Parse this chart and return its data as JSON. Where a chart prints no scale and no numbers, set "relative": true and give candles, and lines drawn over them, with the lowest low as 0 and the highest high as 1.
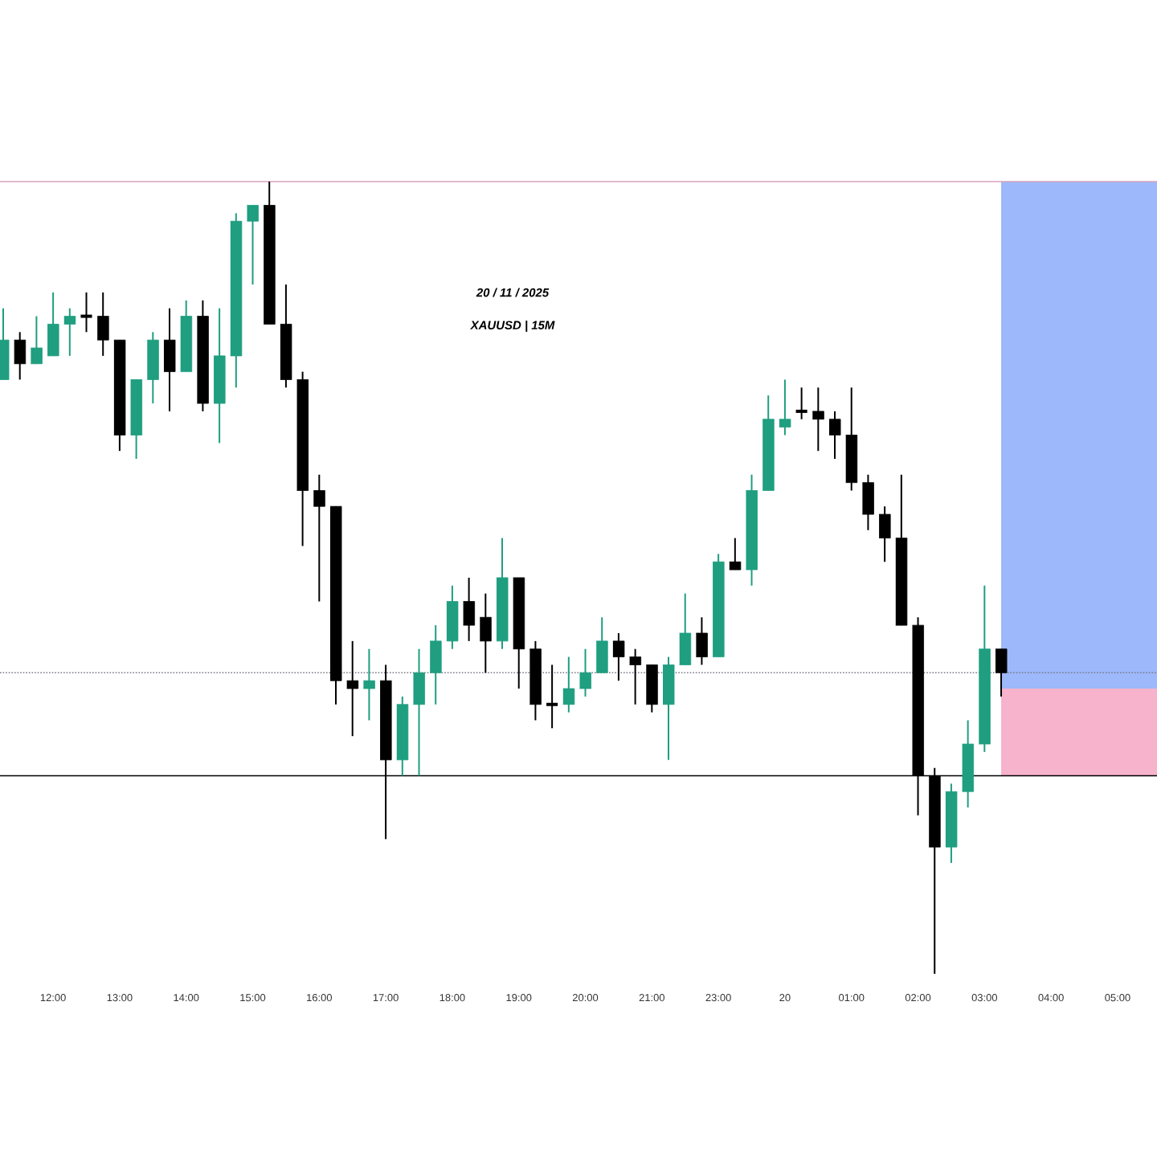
{
  "chart_data": {
    "type": "candlestick",
    "relative": true,
    "categories": [
      null,
      null,
      null,
      "12:00",
      null,
      null,
      null,
      "13:00",
      null,
      null,
      null,
      "14:00",
      null,
      null,
      null,
      "15:00",
      null,
      null,
      null,
      "16:00",
      null,
      null,
      null,
      "17:00",
      null,
      null,
      null,
      "18:00",
      null,
      null,
      null,
      "19:00",
      null,
      null,
      null,
      "20:00",
      null,
      null,
      null,
      "21:00",
      null,
      null,
      null,
      "23:00",
      null,
      null,
      null,
      "20",
      null,
      null,
      null,
      "01:00",
      null,
      null,
      null,
      "02:00",
      null,
      null,
      null,
      "03:00",
      null,
      null,
      null,
      "04:00",
      null,
      null,
      null,
      "05:00",
      null,
      null
    ],
    "ohlc": [
      [
        0.75,
        0.84,
        0.75,
        0.8
      ],
      [
        0.8,
        0.81,
        0.75,
        0.77
      ],
      [
        0.77,
        0.83,
        0.77,
        0.79
      ],
      [
        0.78,
        0.86,
        0.78,
        0.82
      ],
      [
        0.82,
        0.84,
        0.78,
        0.83
      ],
      [
        0.83,
        0.86,
        0.81,
        0.83
      ],
      [
        0.83,
        0.86,
        0.78,
        0.8
      ],
      [
        0.8,
        0.8,
        0.66,
        0.68
      ],
      [
        0.68,
        0.75,
        0.65,
        0.75
      ],
      [
        0.75,
        0.81,
        0.72,
        0.8
      ],
      [
        0.8,
        0.84,
        0.71,
        0.76
      ],
      [
        0.76,
        0.85,
        0.76,
        0.83
      ],
      [
        0.83,
        0.85,
        0.71,
        0.72
      ],
      [
        0.72,
        0.84,
        0.67,
        0.78
      ],
      [
        0.78,
        0.96,
        0.74,
        0.95
      ],
      [
        0.95,
        0.97,
        0.87,
        0.97
      ],
      [
        0.97,
        1.0,
        0.82,
        0.82
      ],
      [
        0.82,
        0.87,
        0.74,
        0.75
      ],
      [
        0.75,
        0.76,
        0.54,
        0.61
      ],
      [
        0.61,
        0.63,
        0.47,
        0.59
      ],
      [
        0.59,
        0.59,
        0.34,
        0.37
      ],
      [
        0.37,
        0.42,
        0.3,
        0.36
      ],
      [
        0.36,
        0.41,
        0.32,
        0.37
      ],
      [
        0.37,
        0.39,
        0.17,
        0.27
      ],
      [
        0.27,
        0.35,
        0.25,
        0.34
      ],
      [
        0.34,
        0.41,
        0.25,
        0.38
      ],
      [
        0.38,
        0.44,
        0.34,
        0.42
      ],
      [
        0.42,
        0.49,
        0.41,
        0.47
      ],
      [
        0.47,
        0.5,
        0.42,
        0.44
      ],
      [
        0.45,
        0.48,
        0.38,
        0.42
      ],
      [
        0.42,
        0.55,
        0.41,
        0.5
      ],
      [
        0.5,
        0.5,
        0.36,
        0.41
      ],
      [
        0.41,
        0.42,
        0.32,
        0.34
      ],
      [
        0.34,
        0.39,
        0.31,
        0.34
      ],
      [
        0.34,
        0.4,
        0.33,
        0.36
      ],
      [
        0.36,
        0.41,
        0.35,
        0.38
      ],
      [
        0.38,
        0.45,
        0.38,
        0.42
      ],
      [
        0.42,
        0.43,
        0.37,
        0.4
      ],
      [
        0.4,
        0.41,
        0.34,
        0.39
      ],
      [
        0.39,
        0.39,
        0.33,
        0.34
      ],
      [
        0.34,
        0.4,
        0.27,
        0.39
      ],
      [
        0.39,
        0.48,
        0.39,
        0.43
      ],
      [
        0.43,
        0.45,
        0.39,
        0.4
      ],
      [
        0.4,
        0.53,
        0.4,
        0.52
      ],
      [
        0.52,
        0.55,
        0.51,
        0.51
      ],
      [
        0.51,
        0.63,
        0.49,
        0.61
      ],
      [
        0.61,
        0.73,
        0.61,
        0.7
      ],
      [
        0.69,
        0.75,
        0.68,
        0.7
      ],
      [
        0.71,
        0.74,
        0.7,
        0.71
      ],
      [
        0.71,
        0.74,
        0.66,
        0.7
      ],
      [
        0.7,
        0.71,
        0.65,
        0.68
      ],
      [
        0.68,
        0.74,
        0.61,
        0.62
      ],
      [
        0.62,
        0.63,
        0.56,
        0.58
      ],
      [
        0.58,
        0.59,
        0.52,
        0.55
      ],
      [
        0.55,
        0.63,
        0.44,
        0.44
      ],
      [
        0.44,
        0.45,
        0.2,
        0.25
      ],
      [
        0.25,
        0.26,
        0.0,
        0.16
      ],
      [
        0.16,
        0.24,
        0.14,
        0.23
      ],
      [
        0.23,
        0.32,
        0.21,
        0.29
      ],
      [
        0.29,
        0.49,
        0.28,
        0.41
      ],
      [
        0.41,
        0.41,
        0.35,
        0.38
      ],
      null,
      null,
      null,
      null,
      null,
      null,
      null,
      null,
      null
    ],
    "colors": [
      "#1f9e80",
      "#000000",
      "#1f9e80",
      "#1f9e80",
      "#1f9e80",
      "#000000",
      "#000000",
      "#000000",
      "#1f9e80",
      "#1f9e80",
      "#000000",
      "#1f9e80",
      "#000000",
      "#1f9e80",
      "#1f9e80",
      "#1f9e80",
      "#000000",
      "#000000",
      "#000000",
      "#000000",
      "#000000",
      "#000000",
      "#1f9e80",
      "#000000",
      "#1f9e80",
      "#1f9e80",
      "#1f9e80",
      "#1f9e80",
      "#000000",
      "#000000",
      "#1f9e80",
      "#000000",
      "#000000",
      "#000000",
      "#1f9e80",
      "#1f9e80",
      "#1f9e80",
      "#000000",
      "#000000",
      "#000000",
      "#1f9e80",
      "#1f9e80",
      "#000000",
      "#1f9e80",
      "#000000",
      "#1f9e80",
      "#1f9e80",
      "#1f9e80",
      "#000000",
      "#000000",
      "#000000",
      "#000000",
      "#000000",
      "#000000",
      "#000000",
      "#000000",
      "#000000",
      "#1f9e80",
      "#1f9e80",
      "#1f9e80",
      "#000000",
      null,
      null,
      null,
      null,
      null,
      null,
      null,
      null,
      null
    ],
    "bands": [
      {
        "axis": "y",
        "from": 0.36,
        "to": 1.0,
        "color": "#9db8fb"
      },
      {
        "axis": "y",
        "from": 0.25,
        "to": 0.36,
        "color": "#f6b3cb"
      }
    ],
    "ref_lines": [
      {
        "axis": "y",
        "value": 1.0,
        "color": "#d9a3bd",
        "line_style": "solid"
      },
      {
        "axis": "y",
        "value": 0.38,
        "color": "#787b86",
        "line_style": "dotted"
      },
      {
        "axis": "y",
        "value": 0.25,
        "color": "#000000",
        "line_style": "solid"
      }
    ],
    "annotations": [
      "20 / 11 / 2025",
      "XAUUSD | 15M"
    ]
  }
}
